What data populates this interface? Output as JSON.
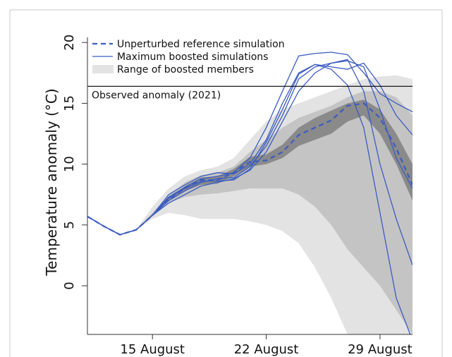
{
  "chart_data": {
    "type": "line",
    "y_label": "Temperature anomaly (°C)",
    "x": [
      11,
      12,
      13,
      14,
      15,
      16,
      17,
      18,
      19,
      20,
      21,
      22,
      23,
      24,
      25,
      26,
      27,
      28,
      29,
      30,
      31
    ],
    "xlim": [
      11,
      31
    ],
    "xticks": [
      {
        "value": 15,
        "label": "15 August"
      },
      {
        "value": 22,
        "label": "22 August"
      },
      {
        "value": 29,
        "label": "29 August"
      }
    ],
    "ylim": [
      -4,
      21
    ],
    "yticks": [
      0,
      5,
      10,
      15,
      20
    ],
    "legend": "upper left",
    "hline": {
      "value": 16.4,
      "label": "Observed anomaly (2021)",
      "color": "#000000"
    },
    "range": {
      "name": "Range of boosted members",
      "color": "#e3e3e3",
      "lower": [
        5.7,
        4.9,
        4.2,
        4.6,
        5.5,
        6.0,
        5.8,
        5.5,
        5.5,
        5.5,
        5.3,
        5.0,
        4.5,
        3.5,
        1.5,
        -1.0,
        -4.0,
        -5.0,
        -6.0,
        -6.0,
        -6.0
      ],
      "upper": [
        5.7,
        4.9,
        4.2,
        4.6,
        6.5,
        8.0,
        9.0,
        9.5,
        9.8,
        10.5,
        12.0,
        13.5,
        14.5,
        15.0,
        15.5,
        16.0,
        16.5,
        17.0,
        17.2,
        17.3,
        17.0
      ]
    },
    "bands": [
      {
        "color": "#c4c4c4",
        "lower": [
          5.7,
          4.9,
          4.2,
          4.6,
          5.7,
          6.8,
          7.3,
          7.5,
          7.6,
          7.8,
          8.0,
          8.0,
          8.0,
          7.5,
          6.5,
          5.0,
          3.0,
          1.5,
          0.0,
          -2.0,
          -4.0
        ],
        "upper": [
          5.7,
          4.9,
          4.2,
          4.6,
          6.0,
          7.4,
          8.5,
          9.1,
          9.3,
          9.8,
          11.0,
          12.0,
          13.0,
          13.8,
          14.3,
          14.8,
          15.5,
          16.0,
          16.0,
          15.5,
          14.0
        ]
      },
      {
        "color": "#8a8a8a",
        "lower": [
          5.7,
          4.9,
          4.2,
          4.6,
          5.8,
          7.0,
          7.8,
          8.3,
          8.4,
          9.0,
          9.8,
          10.0,
          10.5,
          11.5,
          12.0,
          12.5,
          13.5,
          14.0,
          12.5,
          10.0,
          7.0
        ],
        "upper": [
          5.7,
          4.9,
          4.2,
          4.6,
          5.9,
          7.2,
          8.2,
          8.9,
          9.0,
          9.6,
          10.6,
          10.8,
          11.6,
          13.0,
          13.8,
          14.4,
          15.0,
          15.3,
          14.5,
          12.5,
          10.0
        ]
      }
    ],
    "series": [
      {
        "name": "Unperturbed reference simulation",
        "color": "#3b5cc0",
        "dashed": true,
        "values": [
          5.7,
          4.9,
          4.2,
          4.6,
          5.8,
          7.1,
          8.0,
          8.7,
          8.7,
          9.3,
          10.2,
          10.3,
          11.0,
          12.4,
          13.0,
          13.6,
          14.8,
          15.0,
          13.8,
          11.3,
          8.3
        ]
      },
      {
        "name": "Maximum boosted simulations",
        "color": "#3b5cc0",
        "values": [
          5.7,
          4.9,
          4.2,
          4.6,
          5.8,
          7.3,
          8.1,
          8.8,
          9.0,
          9.3,
          10.5,
          13.0,
          16.0,
          18.9,
          19.1,
          19.2,
          19.0,
          17.5,
          15.8,
          15.0,
          14.3
        ]
      },
      {
        "color": "#3b5cc0",
        "values": [
          5.7,
          4.9,
          4.2,
          4.6,
          5.8,
          7.5,
          8.3,
          9.0,
          9.3,
          9.2,
          10.0,
          12.0,
          15.0,
          17.5,
          18.2,
          18.0,
          17.8,
          18.3,
          16.5,
          14.0,
          12.4
        ]
      },
      {
        "color": "#3b5cc0",
        "values": [
          5.7,
          4.9,
          4.2,
          4.6,
          5.8,
          7.0,
          7.8,
          8.5,
          8.8,
          8.9,
          9.8,
          11.5,
          14.0,
          17.0,
          18.0,
          18.3,
          18.5,
          18.0,
          14.5,
          10.5,
          8.0
        ]
      },
      {
        "color": "#3b5cc0",
        "values": [
          5.7,
          4.9,
          4.2,
          4.6,
          5.8,
          6.8,
          7.5,
          8.2,
          8.5,
          8.8,
          9.5,
          11.0,
          13.5,
          16.0,
          17.5,
          18.3,
          18.6,
          16.0,
          10.0,
          5.5,
          1.7
        ]
      },
      {
        "color": "#3b5cc0",
        "values": [
          5.7,
          4.9,
          4.2,
          4.6,
          5.8,
          7.2,
          8.0,
          8.6,
          8.6,
          8.7,
          9.6,
          11.8,
          14.5,
          17.4,
          18.2,
          17.8,
          16.5,
          13.0,
          6.0,
          -1.0,
          -4.5
        ]
      }
    ]
  }
}
